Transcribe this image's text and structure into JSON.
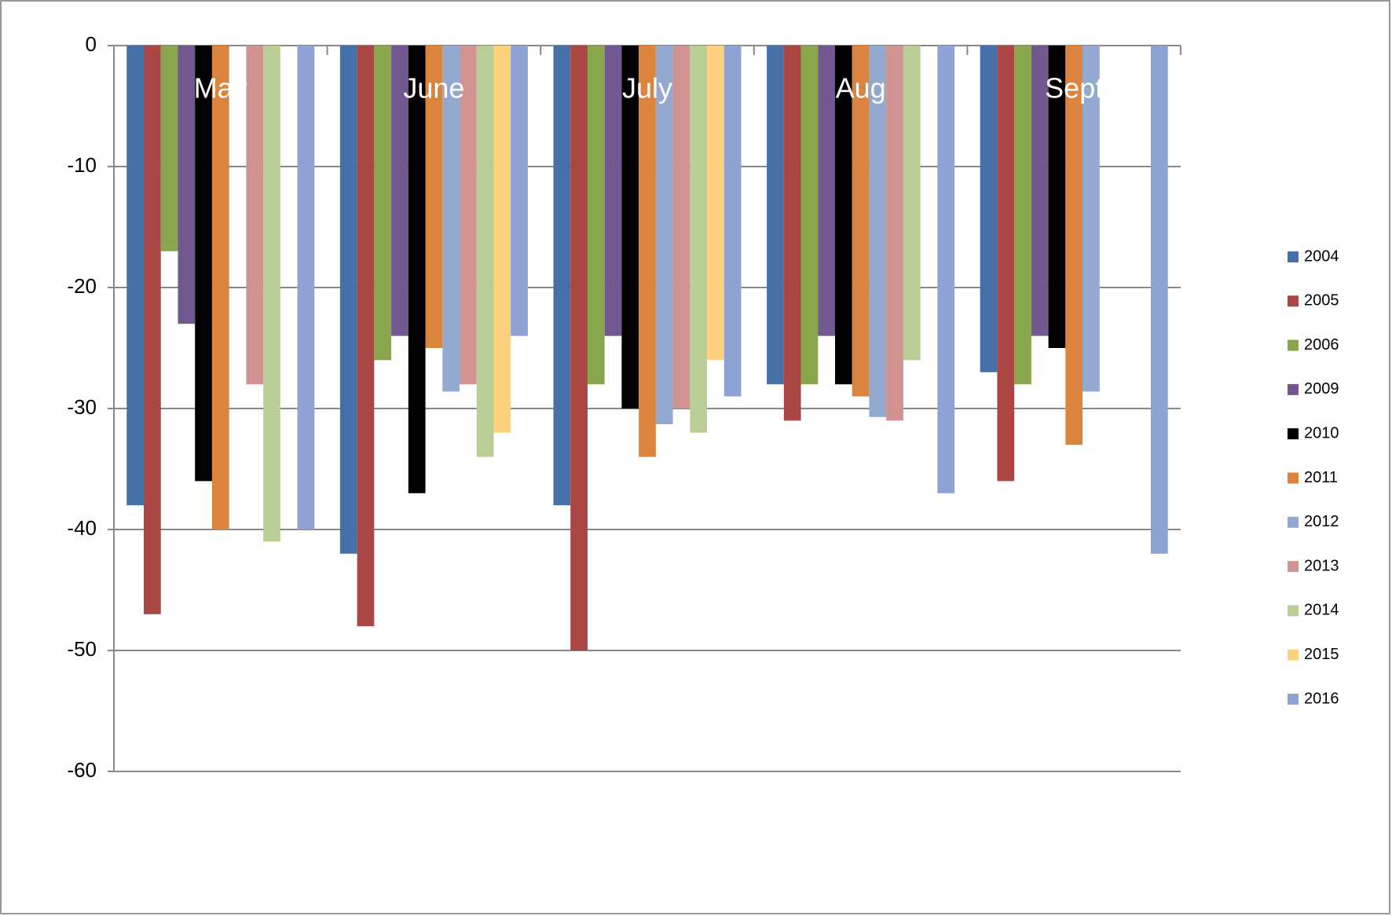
{
  "chart_data": {
    "type": "bar",
    "categories": [
      "May",
      "June",
      "July",
      "Aug",
      "Sept"
    ],
    "series": [
      {
        "name": "2004",
        "color": "#4570a8",
        "values": [
          -38,
          -42,
          -38,
          -28,
          -27
        ]
      },
      {
        "name": "2005",
        "color": "#aa4644",
        "values": [
          -47,
          -48,
          -50,
          -31,
          -36
        ]
      },
      {
        "name": "2006",
        "color": "#89a54e",
        "values": [
          -17,
          -26,
          -28,
          -28,
          -28
        ]
      },
      {
        "name": "2009",
        "color": "#71588f",
        "values": [
          -23,
          -24,
          -24,
          -24,
          -24
        ]
      },
      {
        "name": "2010",
        "color": "#000000",
        "values": [
          -36,
          -37,
          -30,
          -28,
          -25
        ]
      },
      {
        "name": "2011",
        "color": "#db843d",
        "values": [
          -40,
          -25,
          -34,
          -29,
          -33
        ]
      },
      {
        "name": "2012",
        "color": "#93a9cf",
        "values": [
          null,
          -28.6,
          -31.3,
          -30.7,
          -28.6
        ]
      },
      {
        "name": "2013",
        "color": "#d19392",
        "values": [
          -28,
          -28,
          -30,
          -31,
          null
        ]
      },
      {
        "name": "2014",
        "color": "#b9cd96",
        "values": [
          -41,
          -34,
          -32,
          -26,
          null
        ]
      },
      {
        "name": "2015",
        "color": "#fcd27f",
        "values": [
          null,
          -32,
          -26,
          null,
          null
        ]
      },
      {
        "name": "2016",
        "color": "#8fa2d4",
        "values": [
          -40,
          -24,
          -29,
          -37,
          -42
        ]
      }
    ],
    "ylim": [
      -60,
      0
    ],
    "yticks": [
      0,
      -10,
      -20,
      -30,
      -40,
      -50,
      -60
    ],
    "grid": true,
    "legend": "right"
  }
}
